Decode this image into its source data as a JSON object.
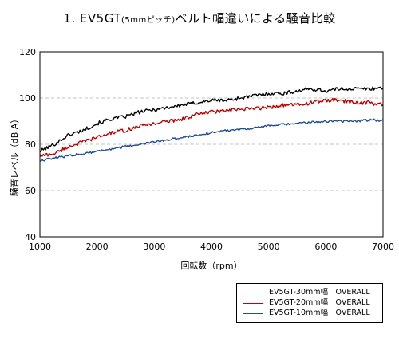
{
  "title": {
    "main": "1. EV5GT",
    "small": "(5mmピッチ)",
    "rest": "ベルト幅違いによる騒音比較"
  },
  "chart_data": {
    "type": "line",
    "title": "1. EV5GT(5mmピッチ)ベルト幅違いによる騒音比較",
    "xlabel": "回転数（rpm）",
    "ylabel": "騒音レベル（dB A）",
    "xlim": [
      1000,
      7000
    ],
    "ylim": [
      40,
      120
    ],
    "x_ticks": [
      "1000",
      "2000",
      "3000",
      "4000",
      "5000",
      "6000",
      "7000"
    ],
    "y_ticks": [
      "40",
      "60",
      "80",
      "100",
      "120"
    ],
    "grid": "horizontal dashed",
    "legend_position": "bottom-right, outside plot",
    "x": [
      1000,
      1250,
      1500,
      1750,
      2000,
      2250,
      2500,
      2750,
      3000,
      3250,
      3500,
      3750,
      4000,
      4250,
      4500,
      4750,
      5000,
      5250,
      5500,
      5750,
      6000,
      6250,
      6500,
      6750,
      7000
    ],
    "series": [
      {
        "name": "EV5GT-30mm幅　OVERALL",
        "color": "#000000",
        "values": [
          77,
          80,
          84,
          86,
          89,
          91,
          92,
          94,
          95,
          96,
          97,
          98,
          99,
          99,
          100,
          101,
          102,
          102,
          103,
          104,
          103,
          104,
          104,
          104,
          104.5
        ]
      },
      {
        "name": "EV5GT-20mm幅　OVERALL",
        "color": "#c00000",
        "values": [
          75,
          76,
          79,
          81,
          83,
          85,
          86,
          88,
          89,
          90,
          91,
          93,
          94,
          94.5,
          95,
          95.5,
          96,
          97,
          97,
          98,
          99,
          99,
          98,
          98,
          97
        ]
      },
      {
        "name": "EV5GT-10mm幅　OVERALL",
        "color": "#1f4e96",
        "values": [
          73,
          74,
          75,
          76,
          77,
          78,
          79,
          80,
          81,
          82,
          83,
          84,
          85,
          86,
          86.5,
          87,
          88,
          88.5,
          89,
          89.5,
          90,
          90,
          90,
          90.5,
          90.5
        ]
      }
    ]
  }
}
